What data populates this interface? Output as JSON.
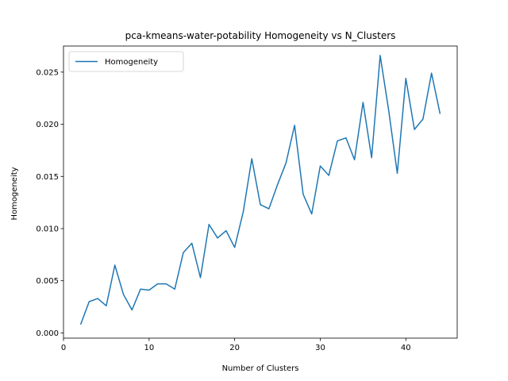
{
  "chart_data": {
    "type": "line",
    "title": "pca-kmeans-water-potability Homogeneity vs N_Clusters",
    "xlabel": "Number of Clusters",
    "ylabel": "Homogeneity",
    "xlim": [
      0,
      46
    ],
    "ylim": [
      -0.0005,
      0.0275
    ],
    "xticks": [
      0,
      10,
      20,
      30,
      40
    ],
    "yticks": [
      0.0,
      0.005,
      0.01,
      0.015,
      0.02,
      0.025
    ],
    "ytick_labels": [
      "0.000",
      "0.005",
      "0.010",
      "0.015",
      "0.020",
      "0.025"
    ],
    "grid": false,
    "legend_position": "top-left",
    "series": [
      {
        "name": "Homogeneity",
        "color": "#1f77b4",
        "x": [
          2,
          3,
          4,
          5,
          6,
          7,
          8,
          9,
          10,
          11,
          12,
          13,
          14,
          15,
          16,
          17,
          18,
          19,
          20,
          21,
          22,
          23,
          24,
          25,
          26,
          27,
          28,
          29,
          30,
          31,
          32,
          33,
          34,
          35,
          36,
          37,
          38,
          39,
          40,
          41,
          42,
          43,
          44
        ],
        "y": [
          0.0008,
          0.003,
          0.0033,
          0.0026,
          0.0065,
          0.0037,
          0.0022,
          0.0042,
          0.0041,
          0.0047,
          0.0047,
          0.0042,
          0.0077,
          0.0086,
          0.0053,
          0.0104,
          0.0091,
          0.0098,
          0.0082,
          0.0116,
          0.0167,
          0.0123,
          0.0119,
          0.0142,
          0.0163,
          0.0199,
          0.0133,
          0.0114,
          0.016,
          0.0151,
          0.0184,
          0.0187,
          0.0166,
          0.0221,
          0.0168,
          0.0266,
          0.0213,
          0.0153,
          0.0244,
          0.0195,
          0.0205,
          0.0249,
          0.021
        ]
      }
    ]
  }
}
